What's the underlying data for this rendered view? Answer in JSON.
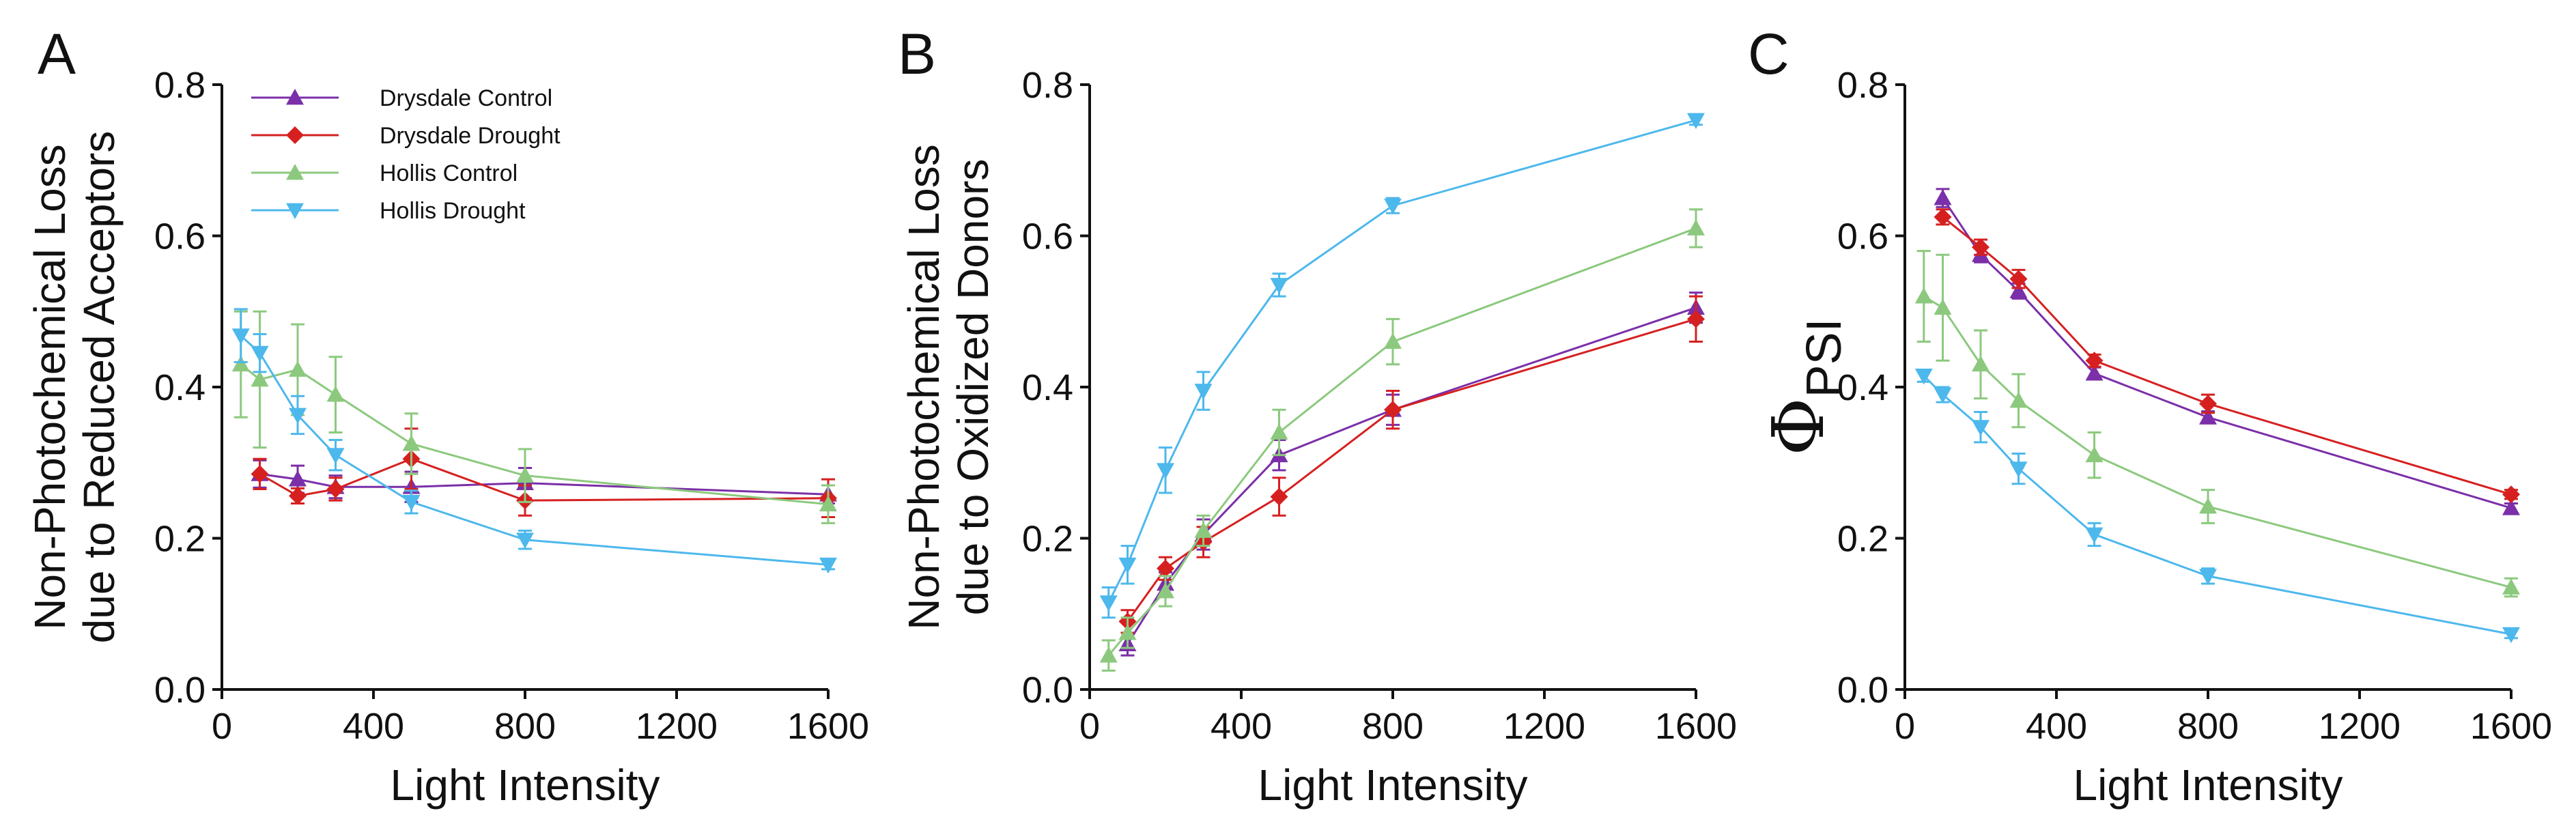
{
  "figure": {
    "panel_letters": [
      "A",
      "B",
      "C"
    ]
  },
  "legend": {
    "entries": [
      {
        "name": "Drysdale Control",
        "color": "#7B2FA8",
        "marker": "triangle-up"
      },
      {
        "name": "Drysdale Drought",
        "color": "#D62020",
        "marker": "diamond"
      },
      {
        "name": "Hollis Control",
        "color": "#8CC97E",
        "marker": "triangle-up"
      },
      {
        "name": "Hollis Drought",
        "color": "#4DB8EC",
        "marker": "triangle-down"
      }
    ]
  },
  "chart_data": [
    {
      "panel": "A",
      "type": "line",
      "title": "",
      "xlabel": "Light Intensity",
      "ylabel_lines": [
        "Non-Photochemical Loss",
        "due to Reduced Acceptors"
      ],
      "ylabel_phi": "",
      "ylabel_sub": "",
      "xlim": [
        0,
        1600
      ],
      "ylim": [
        0,
        0.8
      ],
      "x_ticks": [
        0,
        400,
        800,
        1200,
        1600
      ],
      "y_ticks": [
        0.0,
        0.2,
        0.4,
        0.6,
        0.8
      ],
      "x_tick_labels": [
        "0",
        "400",
        "800",
        "1200",
        "1600"
      ],
      "y_tick_labels": [
        "0.0",
        "0.2",
        "0.4",
        "0.6",
        "0.8"
      ],
      "show_legend": true,
      "series": [
        {
          "name": "Drysdale Control",
          "x": [
            100,
            200,
            300,
            500,
            800,
            1600
          ],
          "y": [
            0.285,
            0.278,
            0.268,
            0.268,
            0.273,
            0.258
          ],
          "err": [
            0.018,
            0.018,
            0.015,
            0.02,
            0.02,
            0.012
          ]
        },
        {
          "name": "Drysdale Drought",
          "x": [
            100,
            200,
            300,
            500,
            800,
            1600
          ],
          "y": [
            0.285,
            0.256,
            0.265,
            0.305,
            0.25,
            0.253
          ],
          "err": [
            0.02,
            0.01,
            0.015,
            0.04,
            0.02,
            0.025
          ]
        },
        {
          "name": "Hollis Control",
          "x": [
            50,
            100,
            200,
            300,
            500,
            800,
            1600
          ],
          "y": [
            0.43,
            0.41,
            0.423,
            0.39,
            0.325,
            0.283,
            0.245
          ],
          "err": [
            0.07,
            0.09,
            0.06,
            0.05,
            0.04,
            0.035,
            0.025
          ]
        },
        {
          "name": "Hollis Drought",
          "x": [
            50,
            100,
            200,
            300,
            500,
            800,
            1600
          ],
          "y": [
            0.468,
            0.445,
            0.363,
            0.31,
            0.248,
            0.198,
            0.165
          ],
          "err": [
            0.035,
            0.025,
            0.025,
            0.02,
            0.015,
            0.012,
            0.006
          ]
        }
      ]
    },
    {
      "panel": "B",
      "type": "line",
      "title": "",
      "xlabel": "Light Intensity",
      "ylabel_lines": [
        "Non-Photochemical Loss",
        "due to Oxidized Donors"
      ],
      "ylabel_phi": "",
      "ylabel_sub": "",
      "xlim": [
        0,
        1600
      ],
      "ylim": [
        0,
        0.8
      ],
      "x_ticks": [
        0,
        400,
        800,
        1200,
        1600
      ],
      "y_ticks": [
        0.0,
        0.2,
        0.4,
        0.6,
        0.8
      ],
      "x_tick_labels": [
        "0",
        "400",
        "800",
        "1200",
        "1600"
      ],
      "y_tick_labels": [
        "0.0",
        "0.2",
        "0.4",
        "0.6",
        "0.8"
      ],
      "show_legend": false,
      "series": [
        {
          "name": "Drysdale Control",
          "x": [
            100,
            200,
            300,
            500,
            800,
            1600
          ],
          "y": [
            0.06,
            0.14,
            0.205,
            0.31,
            0.37,
            0.505
          ],
          "err": [
            0.015,
            0.015,
            0.02,
            0.02,
            0.02,
            0.02
          ]
        },
        {
          "name": "Drysdale Drought",
          "x": [
            100,
            200,
            300,
            500,
            800,
            1600
          ],
          "y": [
            0.09,
            0.16,
            0.195,
            0.255,
            0.37,
            0.49
          ],
          "err": [
            0.015,
            0.015,
            0.02,
            0.025,
            0.025,
            0.03
          ]
        },
        {
          "name": "Hollis Control",
          "x": [
            50,
            100,
            200,
            300,
            500,
            800,
            1600
          ],
          "y": [
            0.045,
            0.075,
            0.13,
            0.21,
            0.34,
            0.46,
            0.61
          ],
          "err": [
            0.02,
            0.02,
            0.02,
            0.02,
            0.03,
            0.03,
            0.025
          ]
        },
        {
          "name": "Hollis Drought",
          "x": [
            50,
            100,
            200,
            300,
            500,
            800,
            1600
          ],
          "y": [
            0.115,
            0.165,
            0.29,
            0.395,
            0.535,
            0.64,
            0.753
          ],
          "err": [
            0.02,
            0.025,
            0.03,
            0.025,
            0.015,
            0.01,
            0.006
          ]
        }
      ]
    },
    {
      "panel": "C",
      "type": "line",
      "title": "",
      "xlabel": "Light Intensity",
      "ylabel_lines": [],
      "ylabel_phi": "Φ",
      "ylabel_sub": "PSI",
      "xlim": [
        0,
        1600
      ],
      "ylim": [
        0,
        0.8
      ],
      "x_ticks": [
        0,
        400,
        800,
        1200,
        1600
      ],
      "y_ticks": [
        0.0,
        0.2,
        0.4,
        0.6,
        0.8
      ],
      "x_tick_labels": [
        "0",
        "400",
        "800",
        "1200",
        "1600"
      ],
      "y_tick_labels": [
        "0.0",
        "0.2",
        "0.4",
        "0.6",
        "0.8"
      ],
      "show_legend": false,
      "series": [
        {
          "name": "Drysdale Control",
          "x": [
            100,
            200,
            300,
            500,
            800,
            1600
          ],
          "y": [
            0.65,
            0.575,
            0.527,
            0.418,
            0.36,
            0.24
          ],
          "err": [
            0.012,
            0.01,
            0.01,
            0.008,
            0.008,
            0.006
          ]
        },
        {
          "name": "Drysdale Drought",
          "x": [
            100,
            200,
            300,
            500,
            800,
            1600
          ],
          "y": [
            0.625,
            0.585,
            0.543,
            0.435,
            0.378,
            0.258
          ],
          "err": [
            0.01,
            0.01,
            0.012,
            0.008,
            0.012,
            0.006
          ]
        },
        {
          "name": "Hollis Control",
          "x": [
            50,
            100,
            200,
            300,
            500,
            800,
            1600
          ],
          "y": [
            0.52,
            0.505,
            0.43,
            0.382,
            0.31,
            0.242,
            0.135
          ],
          "err": [
            0.06,
            0.07,
            0.045,
            0.035,
            0.03,
            0.022,
            0.012
          ]
        },
        {
          "name": "Hollis Drought",
          "x": [
            50,
            100,
            200,
            300,
            500,
            800,
            1600
          ],
          "y": [
            0.415,
            0.39,
            0.347,
            0.292,
            0.205,
            0.15,
            0.073
          ],
          "err": [
            0.008,
            0.01,
            0.02,
            0.02,
            0.015,
            0.01,
            0.005
          ]
        }
      ]
    }
  ]
}
